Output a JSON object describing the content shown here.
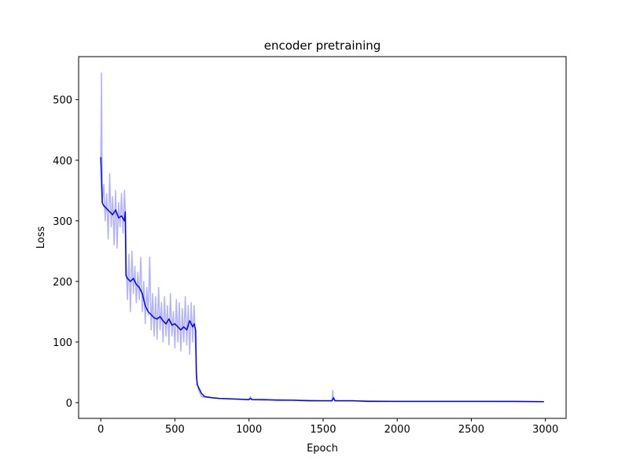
{
  "chart_data": {
    "type": "line",
    "title": "encoder pretraining",
    "x_label": "Epoch",
    "y_label": "Loss",
    "xlim": [
      -149.5,
      3139.5
    ],
    "xticks": [
      0,
      500,
      1000,
      1500,
      2000,
      2500,
      3000
    ],
    "ylim": [
      -26,
      571
    ],
    "yticks": [
      0,
      100,
      200,
      300,
      400,
      500
    ],
    "series": [
      {
        "color": "#b2b2ff",
        "x": [
          0,
          5,
          10,
          20,
          30,
          40,
          50,
          60,
          70,
          80,
          90,
          100,
          110,
          120,
          130,
          140,
          150,
          160,
          168,
          172,
          180,
          190,
          200,
          210,
          220,
          230,
          240,
          250,
          260,
          270,
          280,
          290,
          300,
          310,
          320,
          330,
          340,
          350,
          360,
          370,
          380,
          390,
          400,
          410,
          420,
          430,
          440,
          450,
          460,
          470,
          480,
          490,
          500,
          510,
          520,
          530,
          540,
          550,
          560,
          570,
          580,
          590,
          600,
          610,
          620,
          630,
          640,
          645,
          650,
          660,
          670,
          680,
          700,
          750,
          800,
          900,
          1000,
          1010,
          1020,
          1100,
          1200,
          1300,
          1400,
          1500,
          1560,
          1565,
          1570,
          1600,
          1800,
          2000,
          2500,
          2990
        ],
        "values": [
          400,
          544,
          330,
          360,
          300,
          345,
          270,
          378,
          290,
          340,
          260,
          350,
          255,
          330,
          290,
          345,
          280,
          350,
          300,
          220,
          170,
          245,
          150,
          250,
          180,
          225,
          165,
          215,
          170,
          240,
          150,
          200,
          130,
          190,
          145,
          240,
          120,
          180,
          110,
          175,
          105,
          190,
          120,
          165,
          100,
          175,
          110,
          160,
          95,
          180,
          110,
          150,
          90,
          170,
          100,
          165,
          85,
          155,
          100,
          175,
          95,
          160,
          80,
          165,
          100,
          160,
          90,
          40,
          35,
          20,
          15,
          10,
          9,
          8,
          7,
          6,
          5,
          10,
          5,
          4,
          5,
          4,
          4,
          3,
          3,
          20,
          5,
          3,
          3,
          2,
          2,
          1.5
        ]
      },
      {
        "color": "#0000ff",
        "x": [
          0,
          10,
          20,
          40,
          60,
          80,
          100,
          120,
          140,
          160,
          165,
          170,
          180,
          200,
          220,
          240,
          260,
          280,
          300,
          320,
          340,
          360,
          380,
          400,
          420,
          440,
          460,
          480,
          500,
          520,
          540,
          560,
          580,
          600,
          620,
          630,
          640,
          645,
          650,
          660,
          680,
          700,
          750,
          800,
          900,
          1000,
          1010,
          1020,
          1100,
          1200,
          1300,
          1400,
          1500,
          1560,
          1570,
          1580,
          1600,
          1700,
          1800,
          1900,
          2000,
          2200,
          2400,
          2600,
          2800,
          2990
        ],
        "values": [
          405,
          330,
          325,
          320,
          315,
          310,
          318,
          305,
          308,
          300,
          315,
          210,
          205,
          200,
          205,
          195,
          190,
          180,
          160,
          150,
          145,
          140,
          138,
          142,
          135,
          130,
          138,
          128,
          130,
          125,
          120,
          125,
          120,
          135,
          125,
          130,
          120,
          50,
          30,
          25,
          15,
          10,
          8,
          7,
          6,
          5,
          7,
          5,
          5,
          4,
          4,
          3,
          3,
          3,
          8,
          3,
          3,
          3,
          2,
          2,
          2,
          2,
          2,
          2,
          2,
          1.5
        ]
      }
    ]
  }
}
